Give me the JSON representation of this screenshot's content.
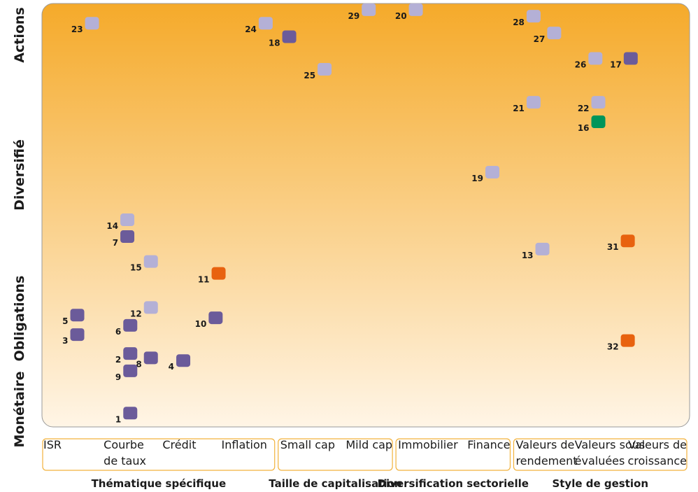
{
  "chart_data": {
    "type": "scatter",
    "title": "",
    "y_levels": [
      "Monétaire",
      "Obligations",
      "Diversifié",
      "Actions"
    ],
    "x_categories": [
      {
        "label": [
          "ISR"
        ],
        "group": "Thématique spécifique"
      },
      {
        "label": [
          "Courbe",
          "de taux"
        ],
        "group": "Thématique spécifique"
      },
      {
        "label": [
          "Crédit"
        ],
        "group": "Thématique spécifique"
      },
      {
        "label": [
          "Inflation"
        ],
        "group": "Thématique spécifique"
      },
      {
        "label": [
          "Small cap"
        ],
        "group": "Taille de capitalisation"
      },
      {
        "label": [
          "Mild cap"
        ],
        "group": "Taille de capitalisation"
      },
      {
        "label": [
          "Immobilier"
        ],
        "group": "Diversification sectorielle"
      },
      {
        "label": [
          "Finance"
        ],
        "group": "Diversification sectorielle"
      },
      {
        "label": [
          "Valeurs de",
          "rendement"
        ],
        "group": "Style de gestion"
      },
      {
        "label": [
          "Valeurs sous",
          "évaluées"
        ],
        "group": "Style de gestion"
      },
      {
        "label": [
          "Valeurs de",
          "croissance"
        ],
        "group": "Style de gestion"
      }
    ],
    "groups": [
      "Thématique spécifique",
      "Taille de capitalisation",
      "Diversification sectorielle",
      "Style de gestion"
    ],
    "colors": {
      "purple": "#6b5b9a",
      "lavender": "#b4b0d6",
      "orange": "#e8620f",
      "green": "#00955a",
      "background_top": "#f5aa2a",
      "background_bottom": "#fff5e6"
    },
    "points": [
      {
        "id": "1",
        "x": 1.0,
        "y": 0.1,
        "color": "purple"
      },
      {
        "id": "2",
        "x": 1.0,
        "y": 1.2,
        "color": "purple"
      },
      {
        "id": "3",
        "x": 0.1,
        "y": 1.55,
        "color": "purple"
      },
      {
        "id": "4",
        "x": 1.9,
        "y": 1.07,
        "color": "purple"
      },
      {
        "id": "5",
        "x": 0.1,
        "y": 1.91,
        "color": "purple"
      },
      {
        "id": "6",
        "x": 1.0,
        "y": 1.72,
        "color": "purple"
      },
      {
        "id": "7",
        "x": 0.95,
        "y": 3.36,
        "color": "purple"
      },
      {
        "id": "8",
        "x": 1.35,
        "y": 1.12,
        "color": "purple"
      },
      {
        "id": "9",
        "x": 1.0,
        "y": 0.88,
        "color": "purple"
      },
      {
        "id": "10",
        "x": 2.45,
        "y": 1.86,
        "color": "purple"
      },
      {
        "id": "11",
        "x": 2.5,
        "y": 2.68,
        "color": "orange"
      },
      {
        "id": "12",
        "x": 1.35,
        "y": 2.05,
        "color": "lavender"
      },
      {
        "id": "13",
        "x": 8.0,
        "y": 3.13,
        "color": "lavender"
      },
      {
        "id": "14",
        "x": 0.95,
        "y": 3.67,
        "color": "lavender"
      },
      {
        "id": "15",
        "x": 1.35,
        "y": 2.9,
        "color": "lavender"
      },
      {
        "id": "16",
        "x": 8.95,
        "y": 5.48,
        "color": "green"
      },
      {
        "id": "17",
        "x": 9.5,
        "y": 6.65,
        "color": "purple"
      },
      {
        "id": "18",
        "x": 3.7,
        "y": 7.05,
        "color": "purple"
      },
      {
        "id": "19",
        "x": 7.15,
        "y": 4.55,
        "color": "lavender"
      },
      {
        "id": "20",
        "x": 5.85,
        "y": 7.55,
        "color": "lavender"
      },
      {
        "id": "21",
        "x": 7.85,
        "y": 5.84,
        "color": "lavender"
      },
      {
        "id": "22",
        "x": 8.95,
        "y": 5.84,
        "color": "lavender"
      },
      {
        "id": "23",
        "x": 0.35,
        "y": 7.3,
        "color": "lavender"
      },
      {
        "id": "24",
        "x": 3.3,
        "y": 7.3,
        "color": "lavender"
      },
      {
        "id": "25",
        "x": 4.3,
        "y": 6.45,
        "color": "lavender"
      },
      {
        "id": "26",
        "x": 8.9,
        "y": 6.65,
        "color": "lavender"
      },
      {
        "id": "27",
        "x": 8.2,
        "y": 7.12,
        "color": "lavender"
      },
      {
        "id": "28",
        "x": 7.85,
        "y": 7.43,
        "color": "lavender"
      },
      {
        "id": "29",
        "x": 5.05,
        "y": 7.55,
        "color": "lavender"
      },
      {
        "id": "31",
        "x": 9.45,
        "y": 3.28,
        "color": "orange"
      },
      {
        "id": "32",
        "x": 9.45,
        "y": 1.44,
        "color": "orange"
      }
    ]
  }
}
